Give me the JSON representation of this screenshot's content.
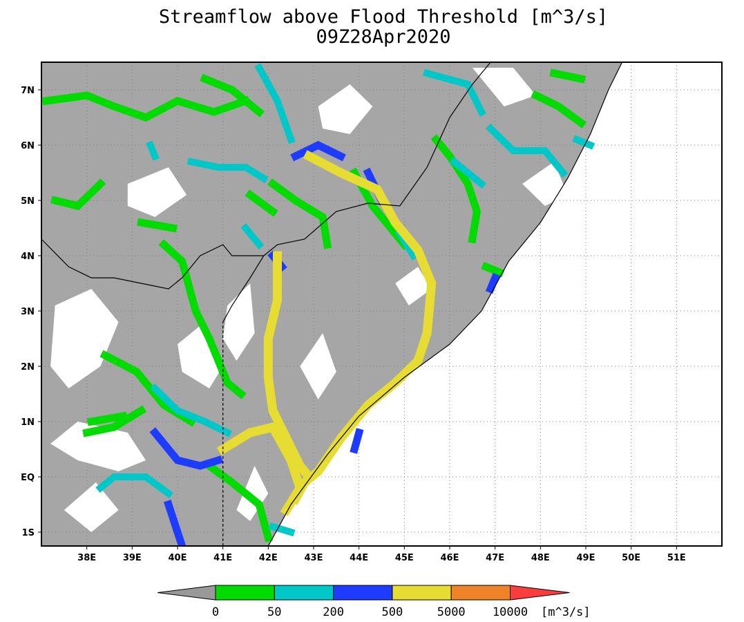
{
  "title": "Streamflow above Flood Threshold [m^3/s]",
  "subtitle": "09Z28Apr2020",
  "x_ticks": [
    "38E",
    "39E",
    "40E",
    "41E",
    "42E",
    "43E",
    "44E",
    "45E",
    "46E",
    "47E",
    "48E",
    "49E",
    "50E",
    "51E"
  ],
  "y_ticks": [
    "7N",
    "6N",
    "5N",
    "4N",
    "3N",
    "2N",
    "1N",
    "EQ",
    "1S"
  ],
  "colorbar": {
    "labels": [
      "0",
      "50",
      "200",
      "500",
      "5000",
      "10000"
    ],
    "units": "[m^3/s]",
    "colors": [
      "#999999",
      "#00dc00",
      "#00c8c8",
      "#1e3cff",
      "#e6dc32",
      "#f08228",
      "#fa3c3c"
    ]
  },
  "colors": {
    "land": "#a6a6a6",
    "low_flow": "#ffffff",
    "ocean": "#ffffff",
    "grid": "#7f7f7f"
  },
  "map_data": {
    "lon_range": [
      37,
      52
    ],
    "lat_range": [
      -1.25,
      7.5
    ],
    "coastline": [
      [
        42,
        -1.25
      ],
      [
        42.5,
        -0.5
      ],
      [
        43.3,
        0.4
      ],
      [
        44,
        1.1
      ],
      [
        45,
        1.8
      ],
      [
        46,
        2.4
      ],
      [
        46.7,
        3.0
      ],
      [
        47.3,
        3.9
      ],
      [
        48,
        4.6
      ],
      [
        48.6,
        5.4
      ],
      [
        49.1,
        6.2
      ],
      [
        49.5,
        7.0
      ],
      [
        49.8,
        7.5
      ]
    ],
    "borders": [
      [
        [
          37,
          4.3
        ],
        [
          37.6,
          3.8
        ],
        [
          38.1,
          3.6
        ],
        [
          38.6,
          3.6
        ],
        [
          39.2,
          3.5
        ],
        [
          39.8,
          3.4
        ],
        [
          40.1,
          3.6
        ],
        [
          40.5,
          4.0
        ],
        [
          41,
          4.2
        ],
        [
          41.2,
          4.0
        ],
        [
          41.9,
          4.0
        ],
        [
          42.2,
          4.2
        ],
        [
          42.8,
          4.3
        ],
        [
          43.5,
          4.8
        ],
        [
          44.2,
          4.95
        ],
        [
          44.9,
          4.9
        ],
        [
          45.5,
          5.6
        ],
        [
          46,
          6.5
        ],
        [
          46.5,
          7.1
        ],
        [
          46.9,
          7.5
        ]
      ],
      [
        [
          41,
          2.8
        ],
        [
          41.2,
          3.1
        ],
        [
          41.6,
          3.6
        ],
        [
          41.9,
          4.0
        ]
      ]
    ],
    "border_dashed": [
      [
        41,
        -1.25
      ],
      [
        41,
        2.8
      ]
    ],
    "rivers": {
      "yellow": [
        [
          [
            42.9,
            5.8
          ],
          [
            43.6,
            5.5
          ],
          [
            44.4,
            5.2
          ],
          [
            44.8,
            4.6
          ],
          [
            45.3,
            4.1
          ],
          [
            45.6,
            3.5
          ],
          [
            45.5,
            2.6
          ],
          [
            45.3,
            2.1
          ],
          [
            44.8,
            1.7
          ],
          [
            44.2,
            1.3
          ],
          [
            43.6,
            0.7
          ],
          [
            43.1,
            0.1
          ],
          [
            42.8,
            -0.1
          ],
          [
            42.6,
            -0.4
          ]
        ],
        [
          [
            42.2,
            4.0
          ],
          [
            42.2,
            3.2
          ],
          [
            42,
            2.5
          ],
          [
            42,
            1.8
          ],
          [
            42.1,
            1.2
          ],
          [
            42.4,
            0.7
          ],
          [
            42.7,
            0.2
          ],
          [
            42.9,
            0.0
          ]
        ],
        [
          [
            41,
            0.5
          ],
          [
            41.6,
            0.8
          ],
          [
            42.1,
            0.9
          ],
          [
            42.5,
            0.3
          ],
          [
            42.7,
            -0.2
          ],
          [
            42.4,
            -0.6
          ]
        ]
      ],
      "blue": [
        [
          [
            42.1,
            4.0
          ],
          [
            42.3,
            3.8
          ]
        ],
        [
          [
            42.6,
            5.8
          ],
          [
            43.1,
            6.0
          ],
          [
            43.6,
            5.8
          ]
        ],
        [
          [
            44.2,
            5.5
          ],
          [
            44.5,
            5.0
          ]
        ],
        [
          [
            39.5,
            0.8
          ],
          [
            40,
            0.3
          ],
          [
            40.5,
            0.2
          ],
          [
            40.9,
            0.3
          ]
        ],
        [
          [
            39.8,
            -0.5
          ],
          [
            40,
            -1.0
          ],
          [
            40.1,
            -1.25
          ]
        ],
        [
          [
            44,
            0.8
          ],
          [
            43.9,
            0.5
          ]
        ],
        [
          [
            47,
            3.6
          ],
          [
            46.9,
            3.4
          ]
        ]
      ],
      "cyan": [
        [
          [
            38.3,
            -0.2
          ],
          [
            38.6,
            0.0
          ],
          [
            39.3,
            0.0
          ],
          [
            39.8,
            -0.3
          ]
        ],
        [
          [
            39.5,
            1.6
          ],
          [
            40,
            1.2
          ],
          [
            40.6,
            1.0
          ],
          [
            41.1,
            0.8
          ]
        ],
        [
          [
            40.3,
            5.7
          ],
          [
            40.9,
            5.6
          ],
          [
            41.5,
            5.6
          ],
          [
            41.9,
            5.4
          ]
        ],
        [
          [
            41.8,
            7.4
          ],
          [
            42.2,
            6.8
          ],
          [
            42.5,
            6.1
          ]
        ],
        [
          [
            41.5,
            4.5
          ],
          [
            41.8,
            4.2
          ]
        ],
        [
          [
            44.9,
            4.4
          ],
          [
            45.2,
            4.0
          ]
        ],
        [
          [
            46.9,
            6.3
          ],
          [
            47.4,
            5.9
          ],
          [
            48.1,
            5.9
          ],
          [
            48.5,
            5.5
          ]
        ],
        [
          [
            46.7,
            5.3
          ],
          [
            46.1,
            5.7
          ]
        ],
        [
          [
            45.5,
            7.3
          ],
          [
            46.4,
            7.1
          ],
          [
            46.7,
            6.6
          ]
        ],
        [
          [
            42.5,
            -1.0
          ],
          [
            42.1,
            -0.9
          ]
        ],
        [
          [
            39.4,
            6.0
          ],
          [
            39.5,
            5.8
          ]
        ],
        [
          [
            48.8,
            6.1
          ],
          [
            49.1,
            6.0
          ]
        ]
      ],
      "green": [
        [
          [
            37.1,
            6.8
          ],
          [
            38,
            6.9
          ],
          [
            38.6,
            6.7
          ],
          [
            39.3,
            6.5
          ],
          [
            40,
            6.8
          ],
          [
            40.8,
            6.6
          ],
          [
            41.5,
            6.8
          ]
        ],
        [
          [
            37.3,
            5.0
          ],
          [
            37.8,
            4.9
          ],
          [
            38.3,
            5.3
          ]
        ],
        [
          [
            39.7,
            4.2
          ],
          [
            40.1,
            3.9
          ],
          [
            40.4,
            3.0
          ],
          [
            40.7,
            2.5
          ],
          [
            41.1,
            1.7
          ],
          [
            41.4,
            1.5
          ]
        ],
        [
          [
            38.4,
            2.2
          ],
          [
            39.1,
            1.9
          ],
          [
            39.7,
            1.3
          ],
          [
            40.3,
            1.0
          ]
        ],
        [
          [
            38,
            0.8
          ],
          [
            38.6,
            0.9
          ],
          [
            39.2,
            1.2
          ]
        ],
        [
          [
            40.7,
            0.2
          ],
          [
            41.2,
            -0.1
          ],
          [
            41.8,
            -0.5
          ],
          [
            42,
            -1.1
          ]
        ],
        [
          [
            42.1,
            5.3
          ],
          [
            42.6,
            5.0
          ],
          [
            43.2,
            4.7
          ],
          [
            43.3,
            4.2
          ]
        ],
        [
          [
            43.9,
            5.5
          ],
          [
            44.3,
            4.9
          ],
          [
            44.6,
            4.6
          ],
          [
            45,
            4.2
          ]
        ],
        [
          [
            45.7,
            6.1
          ],
          [
            46,
            5.8
          ],
          [
            46.4,
            5.3
          ],
          [
            46.6,
            4.8
          ],
          [
            46.5,
            4.3
          ]
        ],
        [
          [
            46.8,
            3.8
          ],
          [
            47.1,
            3.7
          ]
        ],
        [
          [
            47.9,
            6.9
          ],
          [
            48.4,
            6.7
          ],
          [
            48.9,
            6.4
          ]
        ],
        [
          [
            48.3,
            7.3
          ],
          [
            48.9,
            7.2
          ]
        ],
        [
          [
            40.6,
            7.2
          ],
          [
            41.2,
            7.0
          ],
          [
            41.8,
            6.6
          ]
        ],
        [
          [
            41.6,
            5.1
          ],
          [
            42.1,
            4.8
          ]
        ],
        [
          [
            39.2,
            4.6
          ],
          [
            39.9,
            4.5
          ]
        ],
        [
          [
            38.1,
            1.0
          ],
          [
            38.8,
            1.1
          ]
        ]
      ]
    },
    "white_zones": [
      [
        [
          37.3,
          3.1
        ],
        [
          38.1,
          3.4
        ],
        [
          38.7,
          2.8
        ],
        [
          38.3,
          2.0
        ],
        [
          37.6,
          1.6
        ],
        [
          37.2,
          2.0
        ]
      ],
      [
        [
          37.2,
          0.6
        ],
        [
          37.8,
          1.0
        ],
        [
          38.9,
          0.8
        ],
        [
          39.3,
          0.3
        ],
        [
          38.7,
          0.1
        ],
        [
          37.8,
          0.3
        ]
      ],
      [
        [
          40,
          2.4
        ],
        [
          40.6,
          2.8
        ],
        [
          41,
          2.0
        ],
        [
          40.7,
          1.6
        ],
        [
          40.1,
          1.9
        ]
      ],
      [
        [
          41.1,
          3.1
        ],
        [
          41.6,
          3.5
        ],
        [
          41.7,
          2.6
        ],
        [
          41.3,
          2.1
        ],
        [
          41,
          2.5
        ]
      ],
      [
        [
          38.9,
          5.3
        ],
        [
          39.8,
          5.6
        ],
        [
          40.2,
          5.1
        ],
        [
          39.5,
          4.7
        ],
        [
          38.9,
          4.9
        ]
      ],
      [
        [
          43.1,
          6.7
        ],
        [
          43.8,
          7.1
        ],
        [
          44.3,
          6.7
        ],
        [
          43.8,
          6.2
        ],
        [
          43.2,
          6.3
        ]
      ],
      [
        [
          45.3,
          3.8
        ],
        [
          45.6,
          3.4
        ],
        [
          45.1,
          3.1
        ],
        [
          44.8,
          3.5
        ]
      ],
      [
        [
          47.6,
          5.3
        ],
        [
          48.3,
          5.7
        ],
        [
          48.6,
          5.1
        ],
        [
          48.1,
          4.9
        ]
      ],
      [
        [
          37.5,
          -0.6
        ],
        [
          38.2,
          -0.1
        ],
        [
          38.7,
          -0.6
        ],
        [
          38.1,
          -1.0
        ]
      ],
      [
        [
          41.3,
          -0.6
        ],
        [
          41.7,
          0.2
        ],
        [
          42,
          -0.3
        ],
        [
          41.6,
          -0.8
        ]
      ],
      [
        [
          46.5,
          7.4
        ],
        [
          47.2,
          6.7
        ],
        [
          47.9,
          6.9
        ],
        [
          47.4,
          7.4
        ]
      ],
      [
        [
          42.7,
          2.0
        ],
        [
          43.2,
          2.6
        ],
        [
          43.5,
          1.9
        ],
        [
          43.1,
          1.4
        ]
      ]
    ]
  }
}
